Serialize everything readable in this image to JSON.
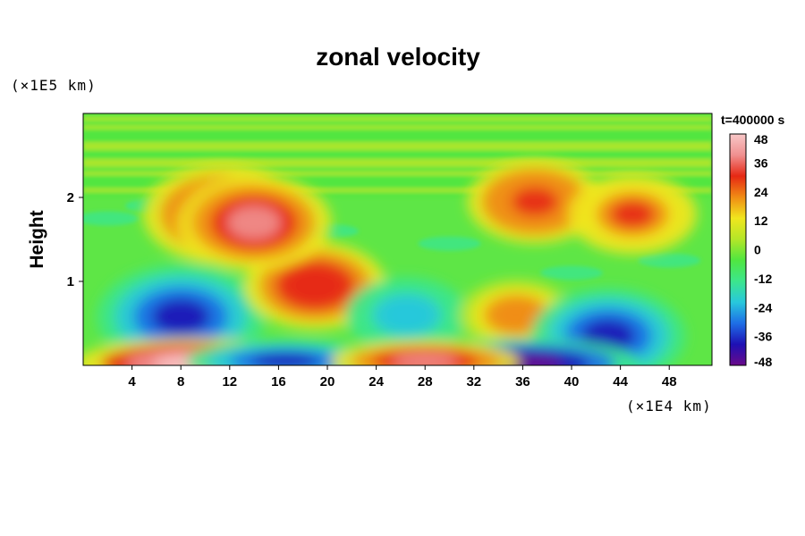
{
  "chart_data": {
    "type": "heatmap",
    "title": "zonal velocity",
    "ylabel": "Height",
    "xunit": "(×1E4 km)",
    "yunit": "(×1E5 km)",
    "time_label": "t=400000 s",
    "xlim": [
      0,
      51.5
    ],
    "ylim": [
      0,
      3.0
    ],
    "x_ticks": [
      4,
      8,
      12,
      16,
      20,
      24,
      28,
      32,
      36,
      40,
      44,
      48
    ],
    "y_ticks": [
      1,
      2
    ],
    "colorbar": {
      "range": [
        -48,
        48
      ],
      "ticks": [
        48,
        36,
        24,
        12,
        0,
        -12,
        -24,
        -36,
        -48
      ],
      "colors": [
        "#6a0a8a",
        "#1e10b4",
        "#1e6ee6",
        "#28c8dc",
        "#3ce68c",
        "#50e640",
        "#b4e628",
        "#f0e61e",
        "#f08c14",
        "#e62814",
        "#f09090",
        "#f8c8c8"
      ]
    },
    "features": [
      {
        "x": 8,
        "y": 0.58,
        "value": -40
      },
      {
        "x": 19,
        "y": 0.95,
        "value": 32
      },
      {
        "x": 26.5,
        "y": 0.6,
        "value": -26
      },
      {
        "x": 35.5,
        "y": 0.6,
        "value": 24
      },
      {
        "x": 43,
        "y": 0.35,
        "value": -36
      },
      {
        "x": 11.5,
        "y": 1.8,
        "value": 38
      },
      {
        "x": 14,
        "y": 1.7,
        "value": 36
      },
      {
        "x": 37,
        "y": 1.95,
        "value": 30
      },
      {
        "x": 45,
        "y": 1.8,
        "value": 28
      },
      {
        "x": 9,
        "y": 0.02,
        "value": 48
      },
      {
        "x": 36,
        "y": 0.02,
        "value": -48
      },
      {
        "x": 16.5,
        "y": 0.05,
        "value": -38
      },
      {
        "x": 28,
        "y": 0.05,
        "value": 36
      }
    ]
  }
}
